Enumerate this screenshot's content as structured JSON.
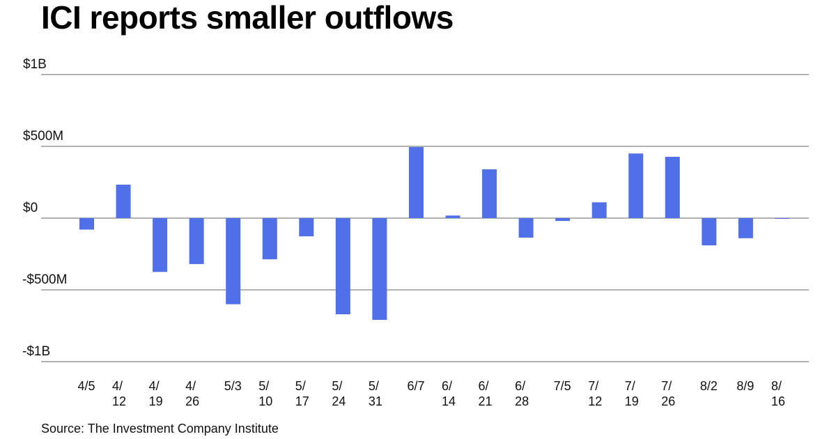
{
  "header": {
    "title": "ICI reports smaller outflows"
  },
  "footer": {
    "source": "Source: The Investment Company Institute"
  },
  "chart_data": {
    "type": "bar",
    "title": "ICI reports smaller outflows",
    "xlabel": "",
    "ylabel": "",
    "unit": "millions USD",
    "ylim": [
      -1000,
      1000
    ],
    "grid": true,
    "yticks": [
      {
        "value": 1000,
        "label": "$1B"
      },
      {
        "value": 500,
        "label": "$500M"
      },
      {
        "value": 0,
        "label": "$0"
      },
      {
        "value": -500,
        "label": "-$500M"
      },
      {
        "value": -1000,
        "label": "-$1B"
      }
    ],
    "categories": [
      "4/5",
      "4/12",
      "4/19",
      "4/26",
      "5/3",
      "5/10",
      "5/17",
      "5/24",
      "5/31",
      "6/7",
      "6/14",
      "6/21",
      "6/28",
      "7/5",
      "7/12",
      "7/19",
      "7/26",
      "8/2",
      "8/9",
      "8/16"
    ],
    "category_label_lines": [
      [
        "4/5"
      ],
      [
        "4/",
        "12"
      ],
      [
        "4/",
        "19"
      ],
      [
        "4/",
        "26"
      ],
      [
        "5/3"
      ],
      [
        "5/",
        "10"
      ],
      [
        "5/",
        "17"
      ],
      [
        "5/",
        "24"
      ],
      [
        "5/",
        "31"
      ],
      [
        "6/7"
      ],
      [
        "6/",
        "14"
      ],
      [
        "6/",
        "21"
      ],
      [
        "6/",
        "28"
      ],
      [
        "7/5"
      ],
      [
        "7/",
        "12"
      ],
      [
        "7/",
        "19"
      ],
      [
        "7/",
        "26"
      ],
      [
        "8/2"
      ],
      [
        "8/9"
      ],
      [
        "8/",
        "16"
      ]
    ],
    "values": [
      -80,
      233,
      -375,
      -320,
      -600,
      -287,
      -127,
      -670,
      -709,
      495,
      18,
      340,
      -136,
      -20,
      110,
      450,
      427,
      -190,
      -140,
      -3
    ],
    "colors": {
      "bar": "#5070EA",
      "grid": "#666666",
      "zero_line": "#999999"
    }
  }
}
